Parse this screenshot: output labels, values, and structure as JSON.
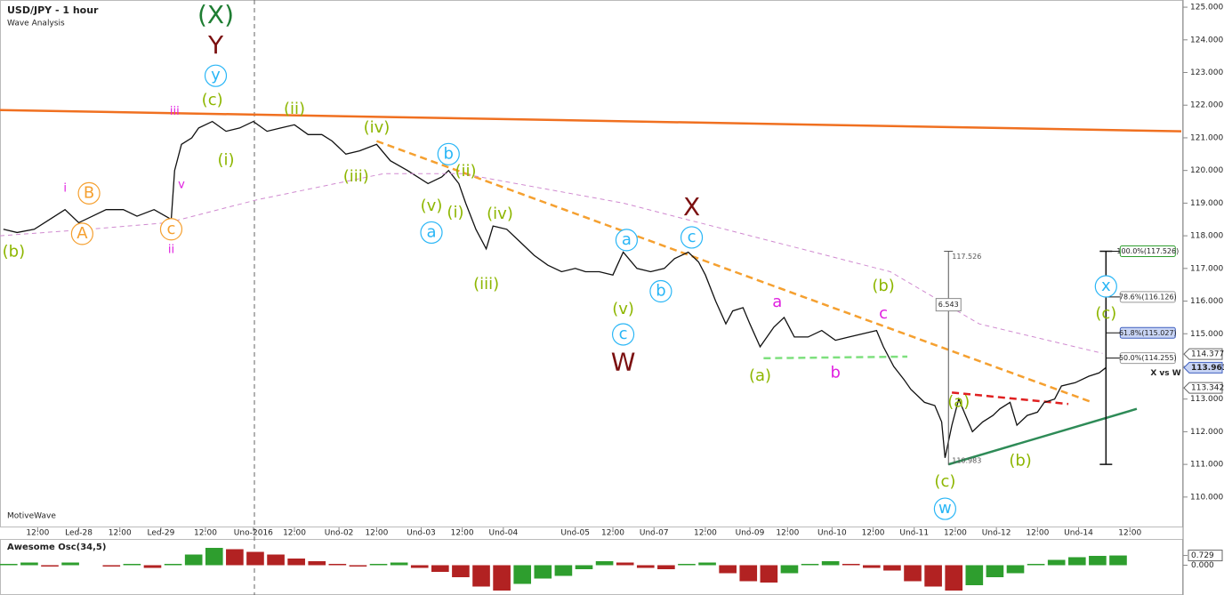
{
  "chart_data": [
    {
      "type": "line",
      "title": "USD/JPY - 1 hour",
      "subtitle": "Wave Analysis",
      "watermark": "MotiveWave",
      "xlim": [
        0,
        345
      ],
      "ylim": [
        109.07,
        125.22
      ],
      "grid": false,
      "xticks": [
        {
          "value": 11,
          "label": "12:00"
        },
        {
          "value": 23,
          "label": "Led-28"
        },
        {
          "value": 35,
          "label": "12:00"
        },
        {
          "value": 47,
          "label": "Led-29"
        },
        {
          "value": 60,
          "label": "12:00"
        },
        {
          "value": 74,
          "label": "Uno-2016"
        },
        {
          "value": 86,
          "label": "12:00"
        },
        {
          "value": 99,
          "label": "Uno-02"
        },
        {
          "value": 110,
          "label": "12:00"
        },
        {
          "value": 123,
          "label": "Uno-03"
        },
        {
          "value": 135,
          "label": "12:00"
        },
        {
          "value": 147,
          "label": "Uno-04"
        },
        {
          "value": 168,
          "label": "Uno-05"
        },
        {
          "value": 179,
          "label": "12:00"
        },
        {
          "value": 191,
          "label": "Uno-07"
        },
        {
          "value": 206,
          "label": "12:00"
        },
        {
          "value": 219,
          "label": "Uno-09"
        },
        {
          "value": 230,
          "label": "12:00"
        },
        {
          "value": 243,
          "label": "Uno-10"
        },
        {
          "value": 255,
          "label": "12:00"
        },
        {
          "value": 267,
          "label": "Uno-11"
        },
        {
          "value": 279,
          "label": "12:00"
        },
        {
          "value": 291,
          "label": "Uno-12"
        },
        {
          "value": 303,
          "label": "12:00"
        },
        {
          "value": 315,
          "label": "Uno-14"
        },
        {
          "value": 330,
          "label": "12:00"
        }
      ],
      "yticks": [
        {
          "value": 110,
          "label": "110.000"
        },
        {
          "value": 111,
          "label": "111.000"
        },
        {
          "value": 112,
          "label": "112.000"
        },
        {
          "value": 113,
          "label": "113.000"
        },
        {
          "value": 114,
          "label": "114.000"
        },
        {
          "value": 115,
          "label": "115.000"
        },
        {
          "value": 116,
          "label": "116.000"
        },
        {
          "value": 117,
          "label": "117.000"
        },
        {
          "value": 118,
          "label": "118.000"
        },
        {
          "value": 119,
          "label": "119.000"
        },
        {
          "value": 120,
          "label": "120.000"
        },
        {
          "value": 121,
          "label": "121.000"
        },
        {
          "value": 122,
          "label": "122.000"
        },
        {
          "value": 123,
          "label": "123.000"
        },
        {
          "value": 124,
          "label": "124.000"
        },
        {
          "value": 125,
          "label": "125.000"
        }
      ],
      "series": [
        {
          "color": "#111111",
          "dash": "solid",
          "x": [
            1,
            5,
            10,
            16,
            19,
            23,
            27,
            31,
            36,
            40,
            45,
            50,
            51,
            53,
            56,
            58,
            62,
            66,
            70,
            74,
            78,
            82,
            86,
            90,
            94,
            97,
            101,
            105,
            110,
            114,
            119,
            125,
            129,
            131,
            134,
            136,
            139,
            142,
            144,
            148,
            152,
            156,
            160,
            164,
            168,
            171,
            175,
            179,
            182,
            186,
            190,
            194,
            197,
            201,
            204,
            206,
            209,
            212,
            214,
            217,
            219,
            222,
            226,
            229,
            232,
            236,
            240,
            244,
            248,
            252,
            256,
            258,
            261,
            264,
            266,
            270,
            273,
            275,
            276,
            278,
            280,
            282,
            284,
            287,
            290,
            292,
            295,
            297,
            300,
            303,
            305,
            308,
            310,
            314,
            318,
            321,
            323
          ],
          "values": [
            118.2,
            118.1,
            118.2,
            118.6,
            118.8,
            118.4,
            118.6,
            118.8,
            118.8,
            118.6,
            118.8,
            118.5,
            120.0,
            120.8,
            121.0,
            121.3,
            121.5,
            121.2,
            121.3,
            121.5,
            121.2,
            121.3,
            121.4,
            121.1,
            121.1,
            120.9,
            120.5,
            120.6,
            120.8,
            120.3,
            120.0,
            119.6,
            119.8,
            120.0,
            119.6,
            119.0,
            118.2,
            117.6,
            118.3,
            118.2,
            117.8,
            117.4,
            117.1,
            116.9,
            117.0,
            116.9,
            116.9,
            116.8,
            117.5,
            117.0,
            116.9,
            117.0,
            117.3,
            117.5,
            117.2,
            116.8,
            116.0,
            115.3,
            115.7,
            115.8,
            115.3,
            114.6,
            115.2,
            115.5,
            114.9,
            114.9,
            115.1,
            114.8,
            114.9,
            115.0,
            115.1,
            114.6,
            114.0,
            113.6,
            113.3,
            112.9,
            112.8,
            112.3,
            111.2,
            112.2,
            113.0,
            112.5,
            112.0,
            112.3,
            112.5,
            112.7,
            112.9,
            112.2,
            112.5,
            112.6,
            112.9,
            113.0,
            113.4,
            113.5,
            113.7,
            113.8,
            113.963
          ]
        },
        {
          "color": "#d08ad0",
          "dash": "dashed",
          "x": [
            0,
            26,
            49,
            75,
            112,
            135,
            182,
            208,
            260,
            286,
            322
          ],
          "values": [
            118.0,
            118.2,
            118.4,
            119.1,
            119.9,
            119.9,
            119.0,
            118.3,
            116.9,
            115.3,
            114.4
          ]
        }
      ],
      "lines": [
        {
          "x": [
            0,
            345
          ],
          "values": [
            121.85,
            121.2
          ],
          "color": "#f07020",
          "dash": "solid"
        },
        {
          "x": [
            110,
            319
          ],
          "values": [
            120.9,
            112.9
          ],
          "color": "#f5a030",
          "dash": "dashed"
        },
        {
          "x": [
            277,
            332
          ],
          "values": [
            111.0,
            112.7
          ],
          "color": "#2e8b57",
          "dash": "solid"
        },
        {
          "x": [
            278,
            312
          ],
          "values": [
            113.2,
            112.85
          ],
          "color": "#e02020",
          "dash": "dashed"
        },
        {
          "x": [
            223,
            265
          ],
          "values": [
            114.25,
            114.3
          ],
          "color": "#7ee07e",
          "dash": "dashed"
        }
      ],
      "annotations": [
        {
          "text": "(X)",
          "x": 63,
          "y": 124.73,
          "color": "#1e7d32",
          "style": "primary"
        },
        {
          "text": "Y",
          "x": 63,
          "y": 123.8,
          "color": "#7b1010",
          "style": "primary"
        },
        {
          "text": "y",
          "x": 63,
          "y": 122.9,
          "color": "#29b6f6",
          "style": "circled"
        },
        {
          "text": "(c)",
          "x": 62,
          "y": 122.14,
          "color": "#8db600",
          "style": "plain"
        },
        {
          "text": "(ii)",
          "x": 86,
          "y": 121.87,
          "color": "#8db600",
          "style": "plain"
        },
        {
          "text": "(iv)",
          "x": 110,
          "y": 121.3,
          "color": "#8db600",
          "style": "plain"
        },
        {
          "text": "(i)",
          "x": 66,
          "y": 120.3,
          "color": "#8db600",
          "style": "plain"
        },
        {
          "text": "(iii)",
          "x": 104,
          "y": 119.8,
          "color": "#8db600",
          "style": "plain"
        },
        {
          "text": "b",
          "x": 131,
          "y": 120.5,
          "color": "#29b6f6",
          "style": "circled"
        },
        {
          "text": "(ii)",
          "x": 136,
          "y": 119.96,
          "color": "#8db600",
          "style": "plain"
        },
        {
          "text": "(v)",
          "x": 126,
          "y": 118.9,
          "color": "#8db600",
          "style": "plain"
        },
        {
          "text": "(i)",
          "x": 133,
          "y": 118.7,
          "color": "#8db600",
          "style": "plain"
        },
        {
          "text": "a",
          "x": 126,
          "y": 118.1,
          "color": "#29b6f6",
          "style": "circled"
        },
        {
          "text": "(iv)",
          "x": 146,
          "y": 118.66,
          "color": "#8db600",
          "style": "plain"
        },
        {
          "text": "(iii)",
          "x": 142,
          "y": 116.5,
          "color": "#8db600",
          "style": "plain"
        },
        {
          "text": "X",
          "x": 202,
          "y": 118.85,
          "color": "#7b1010",
          "style": "primary"
        },
        {
          "text": "c",
          "x": 202,
          "y": 117.95,
          "color": "#29b6f6",
          "style": "circled"
        },
        {
          "text": "a",
          "x": 183,
          "y": 117.87,
          "color": "#29b6f6",
          "style": "circled"
        },
        {
          "text": "b",
          "x": 193,
          "y": 116.3,
          "color": "#29b6f6",
          "style": "circled"
        },
        {
          "text": "(v)",
          "x": 182,
          "y": 115.74,
          "color": "#8db600",
          "style": "plain"
        },
        {
          "text": "c",
          "x": 182,
          "y": 114.98,
          "color": "#29b6f6",
          "style": "circled"
        },
        {
          "text": "W",
          "x": 182,
          "y": 114.1,
          "color": "#7b1010",
          "style": "primary"
        },
        {
          "text": "a",
          "x": 227,
          "y": 115.96,
          "color": "#e020e0",
          "style": "plain"
        },
        {
          "text": "b",
          "x": 244,
          "y": 113.8,
          "color": "#e020e0",
          "style": "plain"
        },
        {
          "text": "c",
          "x": 258,
          "y": 115.6,
          "color": "#e020e0",
          "style": "plain"
        },
        {
          "text": "(b)",
          "x": 258,
          "y": 116.45,
          "color": "#8db600",
          "style": "plain"
        },
        {
          "text": "(a)",
          "x": 222,
          "y": 113.7,
          "color": "#8db600",
          "style": "plain"
        },
        {
          "text": "(a)",
          "x": 280,
          "y": 112.9,
          "color": "#8db600",
          "style": "plain"
        },
        {
          "text": "(b)",
          "x": 298,
          "y": 111.1,
          "color": "#8db600",
          "style": "plain"
        },
        {
          "text": "(c)",
          "x": 276,
          "y": 110.46,
          "color": "#8db600",
          "style": "plain"
        },
        {
          "text": "w",
          "x": 276,
          "y": 109.64,
          "color": "#29b6f6",
          "style": "circled"
        },
        {
          "text": "x",
          "x": 323,
          "y": 116.45,
          "color": "#29b6f6",
          "style": "circled"
        },
        {
          "text": "(c)",
          "x": 323,
          "y": 115.6,
          "color": "#8db600",
          "style": "plain"
        },
        {
          "text": "(b)",
          "x": 4,
          "y": 117.5,
          "color": "#8db600",
          "style": "plain"
        },
        {
          "text": "i",
          "x": 19,
          "y": 119.45,
          "color": "#e020e0",
          "style": "small"
        },
        {
          "text": "B",
          "x": 26,
          "y": 119.3,
          "color": "#f5a030",
          "style": "circled"
        },
        {
          "text": "A",
          "x": 24,
          "y": 118.06,
          "color": "#f5a030",
          "style": "circled"
        },
        {
          "text": "iii",
          "x": 51,
          "y": 121.8,
          "color": "#e020e0",
          "style": "small"
        },
        {
          "text": "v",
          "x": 53,
          "y": 119.55,
          "color": "#e020e0",
          "style": "small"
        },
        {
          "text": "c",
          "x": 50,
          "y": 118.2,
          "color": "#f5a030",
          "style": "circled"
        },
        {
          "text": "ii",
          "x": 50,
          "y": 117.57,
          "color": "#e020e0",
          "style": "small"
        }
      ],
      "fib": {
        "x": 323,
        "label": "X vs W",
        "levels": [
          {
            "value": 117.526,
            "label": "100.0%(117.526)"
          },
          {
            "value": 116.126,
            "label": "78.6%(116.126)"
          },
          {
            "value": 115.027,
            "label": "61.8%(115.027)"
          },
          {
            "value": 114.255,
            "label": "50.0%(114.255)"
          }
        ],
        "low": 111.0
      },
      "measure": {
        "x": 277,
        "top": 117.526,
        "bottom": 110.983,
        "range": 6.543
      },
      "price_tags": [
        114.377,
        113.963,
        113.342
      ]
    },
    {
      "type": "bar",
      "title": "Awesome Osc(34,5)",
      "xlim": [
        0,
        345
      ],
      "ylim": [
        -2.1,
        1.9
      ],
      "up_color": "#2e9e2e",
      "down_color": "#b22222",
      "yticks": [
        {
          "value": 0.729,
          "label": "0.729"
        },
        {
          "value": 0,
          "label": "0.000"
        }
      ],
      "x": [
        0,
        6,
        12,
        18,
        24,
        30,
        36,
        42,
        48,
        54,
        60,
        66,
        72,
        78,
        84,
        90,
        96,
        102,
        108,
        114,
        120,
        126,
        132,
        138,
        144,
        150,
        156,
        162,
        168,
        174,
        180,
        186,
        192,
        198,
        204,
        210,
        216,
        222,
        228,
        234,
        240,
        246,
        252,
        258,
        264,
        270,
        276,
        282,
        288,
        294,
        300,
        306,
        312,
        318,
        324
      ],
      "values": [
        0.1,
        0.2,
        -0.1,
        0.2,
        0.0,
        -0.1,
        0.1,
        -0.2,
        0.1,
        0.8,
        1.3,
        1.2,
        1.0,
        0.8,
        0.5,
        0.3,
        0.1,
        -0.1,
        0.1,
        0.2,
        -0.2,
        -0.5,
        -0.9,
        -1.6,
        -1.9,
        -1.4,
        -1.0,
        -0.8,
        -0.3,
        0.3,
        0.2,
        -0.2,
        -0.3,
        0.1,
        0.2,
        -0.6,
        -1.2,
        -1.3,
        -0.6,
        0.1,
        0.3,
        0.1,
        -0.2,
        -0.4,
        -1.2,
        -1.6,
        -1.9,
        -1.5,
        -0.9,
        -0.6,
        0.1,
        0.4,
        0.6,
        0.7,
        0.729
      ]
    }
  ]
}
